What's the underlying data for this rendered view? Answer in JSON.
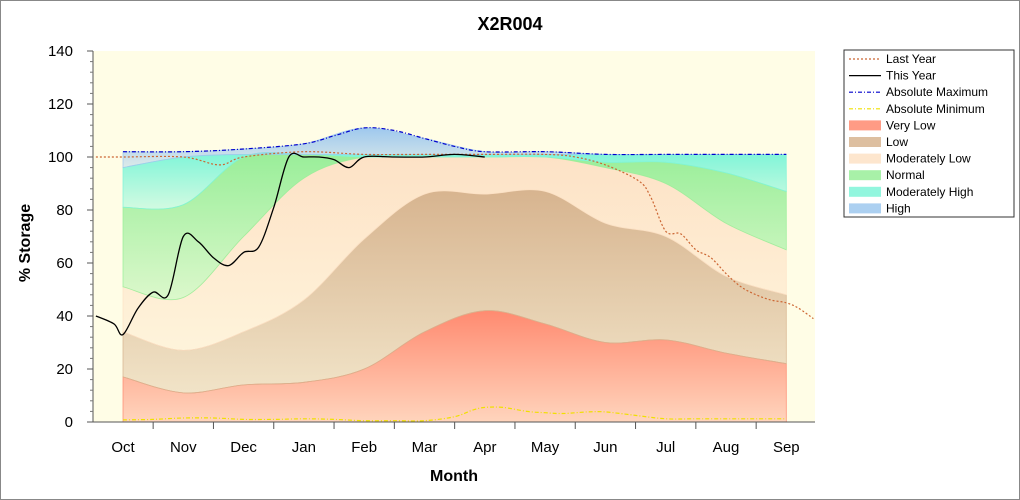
{
  "chart_data": {
    "type": "area",
    "title": "X2R004",
    "xlabel": "Month",
    "ylabel": "% Storage",
    "ylim": [
      0,
      140
    ],
    "yticks": [
      0,
      20,
      40,
      60,
      80,
      100,
      120,
      140
    ],
    "categories": [
      "Oct",
      "Nov",
      "Dec",
      "Jan",
      "Feb",
      "Mar",
      "Apr",
      "May",
      "Jun",
      "Jul",
      "Aug",
      "Sep"
    ],
    "band_x": [
      0,
      1,
      2,
      3,
      4,
      5,
      6,
      7,
      8,
      9,
      10,
      11
    ],
    "bands": [
      {
        "name": "Very Low",
        "color": "#ff8a70",
        "lower": [
          0,
          0,
          0,
          0,
          0,
          0,
          0,
          0,
          0,
          0,
          0,
          0
        ],
        "upper": [
          17,
          11,
          14,
          15,
          20,
          34,
          42,
          37,
          30,
          31,
          26,
          22
        ]
      },
      {
        "name": "Low",
        "color": "#d7b48f",
        "lower": [
          17,
          11,
          14,
          15,
          20,
          34,
          42,
          37,
          30,
          31,
          26,
          22
        ],
        "upper": [
          34,
          27,
          34,
          46,
          69,
          86,
          86,
          87,
          75,
          70,
          55,
          48
        ]
      },
      {
        "name": "Moderately Low",
        "color": "#fde2c6",
        "lower": [
          34,
          27,
          34,
          46,
          69,
          86,
          86,
          87,
          75,
          70,
          55,
          48
        ],
        "upper": [
          51,
          47,
          70,
          92,
          100,
          100,
          100,
          100,
          96,
          90,
          75,
          65
        ]
      },
      {
        "name": "Normal",
        "color": "#99ee99",
        "lower": [
          51,
          47,
          70,
          92,
          100,
          100,
          100,
          100,
          96,
          90,
          75,
          65
        ],
        "upper": [
          81,
          82,
          100,
          101,
          100,
          100,
          100,
          100,
          98,
          98,
          94,
          87
        ]
      },
      {
        "name": "Moderately High",
        "color": "#7ff5d8",
        "lower": [
          81,
          82,
          100,
          101,
          100,
          100,
          100,
          100,
          98,
          98,
          94,
          87
        ],
        "upper": [
          96,
          100,
          101,
          101,
          101,
          101,
          101,
          101,
          101,
          101,
          101,
          101
        ]
      },
      {
        "name": "High",
        "color": "#9ec8ee",
        "lower": [
          96,
          100,
          101,
          101,
          101,
          101,
          101,
          101,
          101,
          101,
          101,
          101
        ],
        "upper": [
          102,
          102,
          103,
          105,
          111,
          107,
          102,
          102,
          101,
          101,
          101,
          101
        ]
      }
    ],
    "series": [
      {
        "name": "Last Year",
        "color": "#cc6633",
        "style": "dotted",
        "x": [
          -0.45,
          0,
          1,
          1.6,
          2,
          3,
          4,
          5,
          6,
          7,
          7.5,
          8,
          8.55,
          8.75,
          9,
          9.25,
          9.5,
          9.75,
          10,
          10.25,
          10.5,
          10.75,
          11,
          11.2,
          11.45
        ],
        "y": [
          100,
          100,
          100,
          97,
          100,
          102,
          101,
          101,
          101,
          101,
          100,
          97,
          91,
          85,
          72,
          71,
          65,
          62,
          56,
          51,
          48,
          46,
          45,
          43,
          39
        ]
      },
      {
        "name": "This Year",
        "color": "#000000",
        "style": "solid",
        "x": [
          -0.45,
          -0.15,
          0,
          0.25,
          0.5,
          0.75,
          1,
          1.25,
          1.5,
          1.75,
          2,
          2.25,
          2.5,
          2.75,
          3,
          3.25,
          3.5,
          3.75,
          4,
          4.5,
          5,
          5.5,
          6
        ],
        "y": [
          40,
          37,
          33,
          43,
          49,
          48,
          70,
          68,
          62,
          59,
          64,
          66,
          81,
          100,
          100,
          100,
          99,
          96,
          100,
          100,
          100,
          101,
          100
        ]
      },
      {
        "name": "Absolute Maximum",
        "color": "#0000cc",
        "style": "dashdot",
        "x": [
          0,
          1,
          2,
          3,
          3.5,
          4,
          4.5,
          5,
          5.5,
          6,
          7,
          8,
          9,
          10,
          11
        ],
        "y": [
          102,
          102,
          103,
          105,
          108,
          111,
          110,
          107,
          104,
          102,
          102,
          101,
          101,
          101,
          101
        ]
      },
      {
        "name": "Absolute Minimum",
        "color": "#f0e000",
        "style": "dashdot",
        "x": [
          0,
          0.5,
          1,
          1.5,
          2,
          2.5,
          3,
          3.5,
          4,
          4.5,
          5,
          5.5,
          5.8,
          6,
          6.3,
          6.7,
          7,
          7.3,
          7.7,
          8,
          8.5,
          9,
          9.5,
          10,
          10.5,
          11
        ],
        "y": [
          0.8,
          1,
          1.5,
          1.5,
          1,
          1,
          1.2,
          1,
          0.5,
          0.5,
          0.5,
          2,
          4.5,
          5.5,
          5.5,
          4,
          3.5,
          3.2,
          3.8,
          3.8,
          2.5,
          1.2,
          1.2,
          1.2,
          1.2,
          1.2
        ]
      }
    ],
    "legend": {
      "placement": "right",
      "entries": [
        {
          "label": "Last Year",
          "kind": "line",
          "color": "#cc6633",
          "style": "dotted"
        },
        {
          "label": "This Year",
          "kind": "line",
          "color": "#000000",
          "style": "solid"
        },
        {
          "label": "Absolute Maximum",
          "kind": "line",
          "color": "#0000cc",
          "style": "dashdot"
        },
        {
          "label": "Absolute Minimum",
          "kind": "line",
          "color": "#f0e000",
          "style": "dashdot"
        },
        {
          "label": "Very Low",
          "kind": "band",
          "color": "#ff8a70"
        },
        {
          "label": "Low",
          "kind": "band",
          "color": "#d7b48f"
        },
        {
          "label": "Moderately Low",
          "kind": "band",
          "color": "#fde2c6"
        },
        {
          "label": "Normal",
          "kind": "band",
          "color": "#99ee99"
        },
        {
          "label": "Moderately High",
          "kind": "band",
          "color": "#7ff5d8"
        },
        {
          "label": "High",
          "kind": "band",
          "color": "#9ec8ee"
        }
      ]
    },
    "grid": false,
    "colors": {
      "plot_background": "#fffde6",
      "frame": "#888888"
    }
  }
}
